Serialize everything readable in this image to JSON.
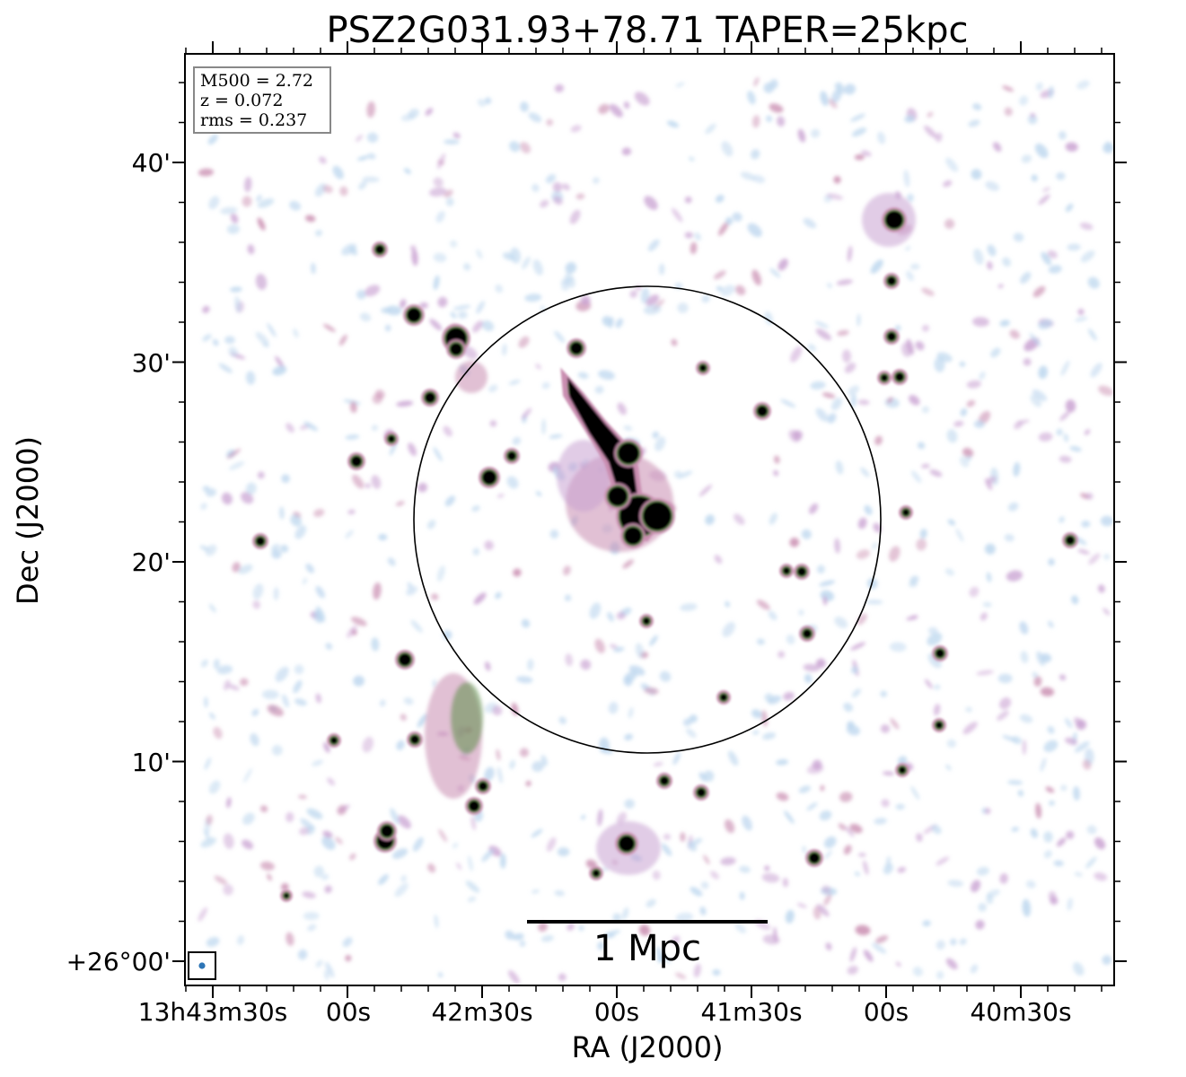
{
  "chart_data": {
    "type": "image",
    "title": "PSZ2G031.93+78.71 TAPER=25kpc",
    "xlabel": "RA (J2000)",
    "ylabel": "Dec (J2000)",
    "x_tick_labels": [
      "13h43m30s",
      "00s",
      "42m30s",
      "00s",
      "41m30s",
      "00s",
      "40m30s"
    ],
    "y_tick_labels": [
      "+26°00'",
      "10'",
      "20'",
      "30'",
      "40'"
    ],
    "info_box": [
      "M500 = 2.72",
      "z = 0.072",
      "rms = 0.237"
    ],
    "scale_bar_label": "1 Mpc",
    "colormap": [
      "#bcd6ee",
      "#c9a2d2",
      "#c98db0",
      "#5f8f4a",
      "#000000"
    ]
  }
}
